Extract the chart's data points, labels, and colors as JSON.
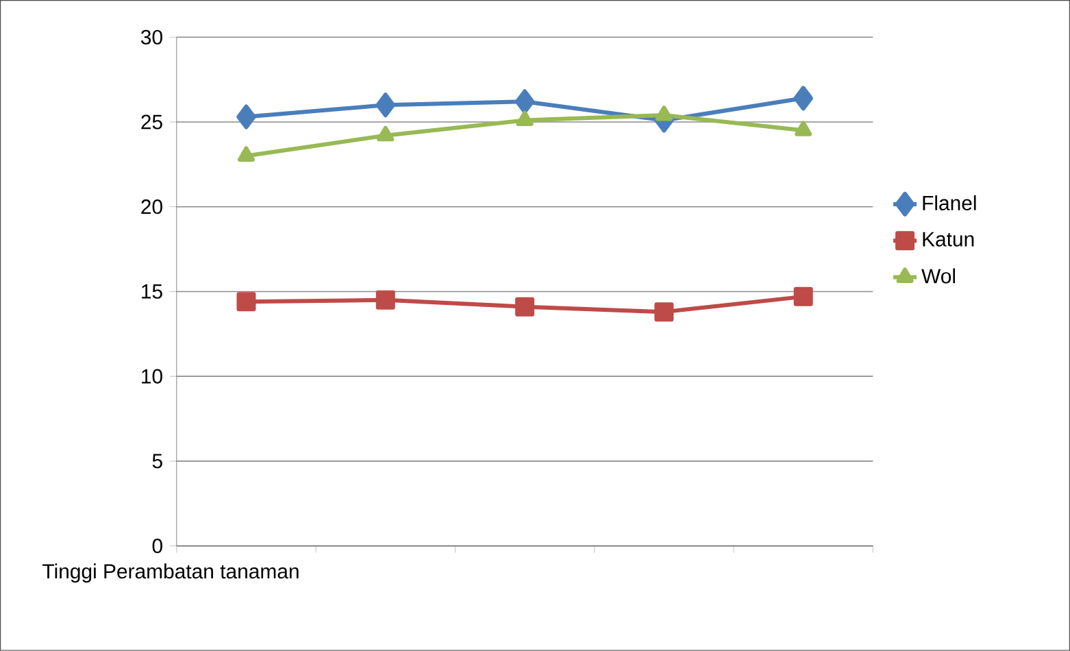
{
  "chart_data": {
    "type": "line",
    "xlabel": "Tinggi Perambatan tanaman",
    "categories": [
      null,
      null,
      null,
      null,
      null
    ],
    "series": [
      {
        "name": "Flanel",
        "color": "#4a7ebb",
        "marker": "diamond",
        "values": [
          25.3,
          26.0,
          26.2,
          25.1,
          26.4
        ]
      },
      {
        "name": "Katun",
        "color": "#be4b48",
        "marker": "square",
        "values": [
          14.4,
          14.5,
          14.1,
          13.8,
          14.7
        ]
      },
      {
        "name": "Wol",
        "color": "#98b954",
        "marker": "triangle",
        "values": [
          23.0,
          24.2,
          25.1,
          25.4,
          24.5
        ]
      }
    ],
    "ylim": [
      0,
      30
    ],
    "yticks": [
      0,
      5,
      10,
      15,
      20,
      25,
      30
    ],
    "grid": "y",
    "legend": "right",
    "tick_labels": "y"
  }
}
